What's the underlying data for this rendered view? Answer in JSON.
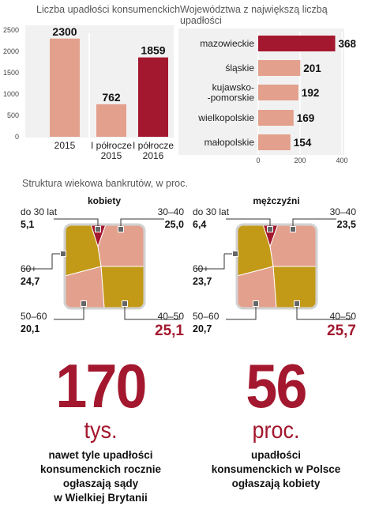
{
  "chart_data": [
    {
      "type": "bar",
      "title": "Liczba upadłości konsumenckich",
      "categories": [
        "2015",
        "I półrocze\n2015",
        "I półrocze\n2016"
      ],
      "values": [
        2300,
        762,
        1859
      ],
      "yticks": [
        "0",
        "500",
        "1000",
        "1500",
        "2000",
        "2500"
      ],
      "ylim": [
        0,
        2500
      ],
      "colors": [
        "#e3a08d",
        "#e3a08d",
        "#a3182e"
      ]
    },
    {
      "type": "bar",
      "orientation": "horizontal",
      "title": "Województwa z największą liczbą\nupadłości",
      "categories": [
        "mazowieckie",
        "śląskie",
        "kujawsko-\n-pomorskie",
        "wielkopolskie",
        "małopolskie"
      ],
      "values": [
        368,
        201,
        192,
        169,
        154
      ],
      "xticks": [
        "0",
        "200",
        "400"
      ],
      "xlim": [
        0,
        400
      ],
      "colors": [
        "#a3182e",
        "#e3a08d",
        "#e3a08d",
        "#e3a08d",
        "#e3a08d"
      ]
    },
    {
      "type": "table",
      "title": "Struktura wiekowa bankrutów, w proc.",
      "groups": [
        {
          "name": "kobiety",
          "segments": [
            {
              "label": "do 30 lat",
              "value": "5,1",
              "color": "#a3182e"
            },
            {
              "label": "30–40",
              "value": "25,0",
              "color": "#e3a08d"
            },
            {
              "label": "40–50",
              "value": "25,1",
              "color": "#c39a18"
            },
            {
              "label": "50–60",
              "value": "20,1",
              "color": "#e3a08d"
            },
            {
              "label": "60+",
              "value": "24,7",
              "color": "#c39a18"
            }
          ]
        },
        {
          "name": "mężczyźni",
          "segments": [
            {
              "label": "do 30 lat",
              "value": "6,4",
              "color": "#a3182e"
            },
            {
              "label": "30–40",
              "value": "23,5",
              "color": "#e3a08d"
            },
            {
              "label": "40–50",
              "value": "25,7",
              "color": "#c39a18"
            },
            {
              "label": "50–60",
              "value": "20,7",
              "color": "#e3a08d"
            },
            {
              "label": "60+",
              "value": "23,7",
              "color": "#c39a18"
            }
          ]
        }
      ]
    }
  ],
  "stats": [
    {
      "number": "170",
      "unit": "tys.",
      "desc": "nawet tyle upadłości\nkonsumenckich rocznie\nogłaszają sądy\nw Wielkiej Brytanii"
    },
    {
      "number": "56",
      "unit": "proc.",
      "desc": "upadłości\nkonsumenckich w Polsce\nogłaszają kobiety"
    }
  ]
}
